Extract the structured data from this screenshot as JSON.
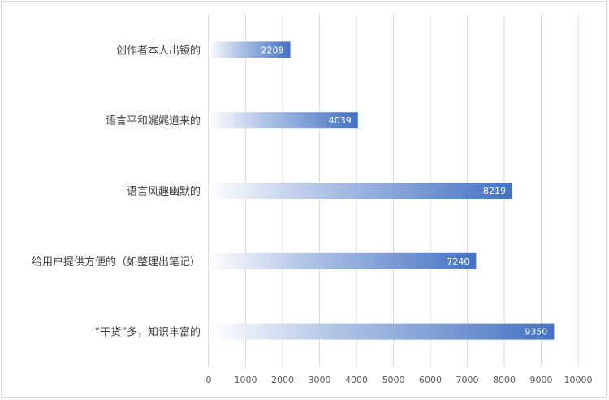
{
  "chart_data": {
    "type": "bar",
    "orientation": "horizontal",
    "categories": [
      "创作者本人出镜的",
      "语言平和娓娓道来的",
      "语言风趣幽默的",
      "给用户提供方便的（如整理出笔记）",
      "“干货”多，知识丰富的"
    ],
    "values": [
      2209,
      4039,
      8219,
      7240,
      9350
    ],
    "xlim": [
      0,
      10000
    ],
    "xticks": [
      0,
      1000,
      2000,
      3000,
      4000,
      5000,
      6000,
      7000,
      8000,
      9000,
      10000
    ],
    "grid": true,
    "legend": "none",
    "bar_color": "#4472c4",
    "bar_gradient_start": "#ffffff",
    "data_labels": true
  }
}
